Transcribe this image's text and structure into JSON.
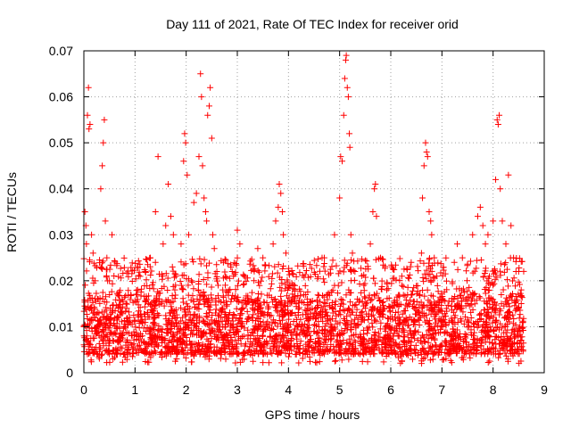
{
  "chart_data": {
    "type": "scatter",
    "title": "Day 111 of 2021, Rate Of TEC Index for receiver orid",
    "xlabel": "GPS time / hours",
    "ylabel": "ROTI / TECUs",
    "xlim": [
      0,
      9
    ],
    "ylim": [
      0,
      0.07
    ],
    "x_ticks": [
      0,
      1,
      2,
      3,
      4,
      5,
      6,
      7,
      8,
      9
    ],
    "x_tick_labels": [
      "0",
      "1",
      "2",
      "3",
      "4",
      "5",
      "6",
      "7",
      "8",
      "9"
    ],
    "y_ticks": [
      0,
      0.01,
      0.02,
      0.03,
      0.04,
      0.05,
      0.06,
      0.07
    ],
    "y_tick_labels": [
      "0",
      "0.01",
      "0.02",
      "0.03",
      "0.04",
      "0.05",
      "0.06",
      "0.07"
    ],
    "grid": true,
    "marker": "+",
    "series": [
      {
        "name": "ROTI",
        "color": "#ff0000",
        "points": [
          [
            0.02,
            0.035
          ],
          [
            0.04,
            0.032
          ],
          [
            0.05,
            0.028
          ],
          [
            0.07,
            0.056
          ],
          [
            0.09,
            0.062
          ],
          [
            0.1,
            0.053
          ],
          [
            0.12,
            0.054
          ],
          [
            0.15,
            0.03
          ],
          [
            0.18,
            0.026
          ],
          [
            0.22,
            0.02
          ],
          [
            0.28,
            0.016
          ],
          [
            0.33,
            0.04
          ],
          [
            0.36,
            0.045
          ],
          [
            0.38,
            0.05
          ],
          [
            0.4,
            0.055
          ],
          [
            0.42,
            0.033
          ],
          [
            0.45,
            0.025
          ],
          [
            0.5,
            0.02
          ],
          [
            0.55,
            0.03
          ],
          [
            1.05,
            0.018
          ],
          [
            1.2,
            0.022
          ],
          [
            1.3,
            0.025
          ],
          [
            1.4,
            0.035
          ],
          [
            1.45,
            0.047
          ],
          [
            1.55,
            0.028
          ],
          [
            1.6,
            0.032
          ],
          [
            1.65,
            0.041
          ],
          [
            1.7,
            0.034
          ],
          [
            1.75,
            0.03
          ],
          [
            1.8,
            0.021
          ],
          [
            1.9,
            0.028
          ],
          [
            1.95,
            0.046
          ],
          [
            1.97,
            0.052
          ],
          [
            1.99,
            0.05
          ],
          [
            2.02,
            0.043
          ],
          [
            2.05,
            0.03
          ],
          [
            2.1,
            0.02
          ],
          [
            2.15,
            0.037
          ],
          [
            2.2,
            0.039
          ],
          [
            2.25,
            0.047
          ],
          [
            2.28,
            0.065
          ],
          [
            2.3,
            0.06
          ],
          [
            2.32,
            0.045
          ],
          [
            2.35,
            0.038
          ],
          [
            2.38,
            0.035
          ],
          [
            2.4,
            0.033
          ],
          [
            2.42,
            0.056
          ],
          [
            2.45,
            0.058
          ],
          [
            2.47,
            0.062
          ],
          [
            2.5,
            0.051
          ],
          [
            2.52,
            0.03
          ],
          [
            2.55,
            0.027
          ],
          [
            2.6,
            0.022
          ],
          [
            2.9,
            0.022
          ],
          [
            3.0,
            0.031
          ],
          [
            3.05,
            0.028
          ],
          [
            3.4,
            0.027
          ],
          [
            3.5,
            0.025
          ],
          [
            3.7,
            0.028
          ],
          [
            3.75,
            0.033
          ],
          [
            3.8,
            0.036
          ],
          [
            3.82,
            0.041
          ],
          [
            3.85,
            0.039
          ],
          [
            3.88,
            0.035
          ],
          [
            3.9,
            0.03
          ],
          [
            3.95,
            0.026
          ],
          [
            4.0,
            0.022
          ],
          [
            4.7,
            0.025
          ],
          [
            4.9,
            0.03
          ],
          [
            5.0,
            0.038
          ],
          [
            5.02,
            0.047
          ],
          [
            5.05,
            0.046
          ],
          [
            5.08,
            0.056
          ],
          [
            5.1,
            0.064
          ],
          [
            5.12,
            0.068
          ],
          [
            5.13,
            0.069
          ],
          [
            5.15,
            0.062
          ],
          [
            5.17,
            0.06
          ],
          [
            5.19,
            0.052
          ],
          [
            5.2,
            0.049
          ],
          [
            5.22,
            0.03
          ],
          [
            5.25,
            0.026
          ],
          [
            5.3,
            0.022
          ],
          [
            5.6,
            0.028
          ],
          [
            5.65,
            0.035
          ],
          [
            5.68,
            0.04
          ],
          [
            5.7,
            0.041
          ],
          [
            5.72,
            0.034
          ],
          [
            5.8,
            0.025
          ],
          [
            6.6,
            0.026
          ],
          [
            6.62,
            0.038
          ],
          [
            6.65,
            0.045
          ],
          [
            6.68,
            0.05
          ],
          [
            6.7,
            0.048
          ],
          [
            6.72,
            0.047
          ],
          [
            6.75,
            0.035
          ],
          [
            6.78,
            0.033
          ],
          [
            6.8,
            0.03
          ],
          [
            6.85,
            0.025
          ],
          [
            6.9,
            0.021
          ],
          [
            7.3,
            0.028
          ],
          [
            7.4,
            0.025
          ],
          [
            7.6,
            0.03
          ],
          [
            7.7,
            0.034
          ],
          [
            7.75,
            0.036
          ],
          [
            7.8,
            0.032
          ],
          [
            7.85,
            0.028
          ],
          [
            7.9,
            0.03
          ],
          [
            8.0,
            0.033
          ],
          [
            8.05,
            0.042
          ],
          [
            8.08,
            0.055
          ],
          [
            8.1,
            0.054
          ],
          [
            8.12,
            0.056
          ],
          [
            8.14,
            0.04
          ],
          [
            8.18,
            0.033
          ],
          [
            8.25,
            0.028
          ],
          [
            8.3,
            0.043
          ],
          [
            8.35,
            0.032
          ],
          [
            8.4,
            0.025
          ],
          [
            8.5,
            0.022
          ],
          [
            8.55,
            0.018
          ]
        ],
        "dense_band": {
          "x_range": [
            0.0,
            8.6
          ],
          "typical_min": 0.004,
          "typical_max": 0.017,
          "min": 0.002,
          "note": "thousands of + markers densely covering roughly 0.004-0.017 TECU/s across 0-8.6 h"
        }
      }
    ]
  }
}
